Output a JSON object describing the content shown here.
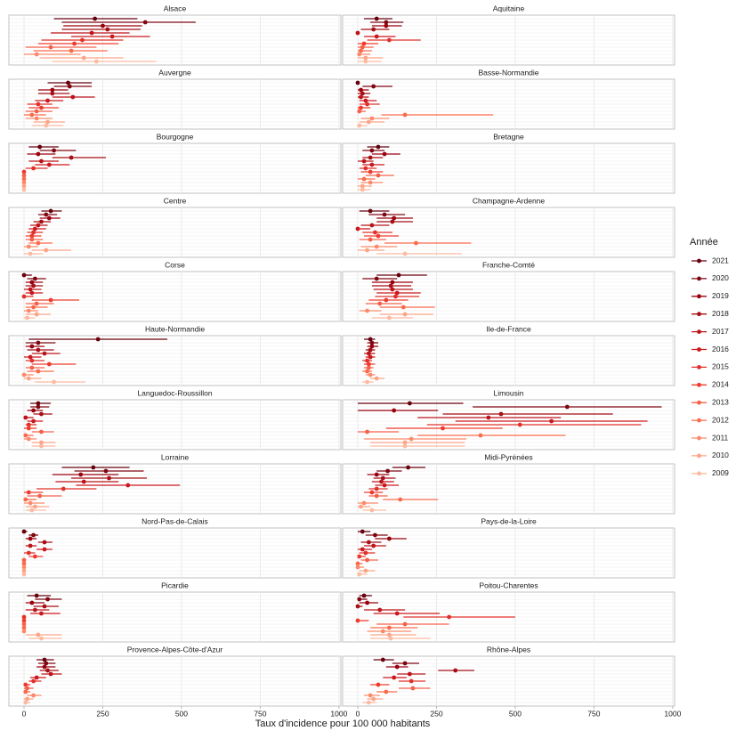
{
  "chart_data": {
    "type": "interval",
    "x_label": "Taux d'incidence pour 100 000 habitants",
    "legend_title": "Année",
    "xlim": [
      -48,
      1006
    ],
    "xticks": [
      0,
      250,
      500,
      750,
      1000
    ],
    "grid": true,
    "series": [
      {
        "name": "2021",
        "color": "#67000d"
      },
      {
        "name": "2020",
        "color": "#7f0610"
      },
      {
        "name": "2019",
        "color": "#99000d"
      },
      {
        "name": "2018",
        "color": "#a50f15"
      },
      {
        "name": "2017",
        "color": "#bb1419"
      },
      {
        "name": "2016",
        "color": "#cb181d"
      },
      {
        "name": "2015",
        "color": "#e0312a"
      },
      {
        "name": "2014",
        "color": "#ef3b2c"
      },
      {
        "name": "2013",
        "color": "#f4614a"
      },
      {
        "name": "2012",
        "color": "#fb6a4a"
      },
      {
        "name": "2011",
        "color": "#fc8a6a"
      },
      {
        "name": "2010",
        "color": "#fca486"
      },
      {
        "name": "2009",
        "color": "#fcbba1"
      }
    ],
    "facets": [
      {
        "title": "Alsace",
        "values": [
          225,
          385,
          250,
          265,
          215,
          280,
          185,
          160,
          85,
          150,
          40,
          190,
          230
        ],
        "lower": [
          95,
          120,
          125,
          120,
          85,
          150,
          55,
          45,
          5,
          30,
          0,
          50,
          90
        ],
        "upper": [
          360,
          545,
          375,
          370,
          335,
          400,
          315,
          300,
          230,
          265,
          180,
          315,
          420
        ]
      },
      {
        "title": "Aquitaine",
        "values": [
          60,
          90,
          90,
          50,
          0,
          60,
          100,
          20,
          15,
          10,
          5,
          25,
          25
        ],
        "lower": [
          20,
          40,
          45,
          10,
          0,
          20,
          30,
          0,
          0,
          0,
          0,
          0,
          0
        ],
        "upper": [
          110,
          145,
          140,
          100,
          5,
          120,
          200,
          65,
          50,
          45,
          40,
          80,
          75
        ]
      },
      {
        "title": "Auvergne",
        "values": [
          140,
          145,
          90,
          90,
          155,
          75,
          45,
          55,
          40,
          25,
          40,
          75,
          70
        ],
        "lower": [
          75,
          95,
          45,
          45,
          90,
          35,
          10,
          15,
          5,
          0,
          5,
          30,
          25
        ],
        "upper": [
          215,
          215,
          140,
          145,
          225,
          125,
          90,
          110,
          90,
          70,
          90,
          130,
          125
        ]
      },
      {
        "title": "Basse-Normandie",
        "values": [
          0,
          50,
          10,
          15,
          10,
          25,
          30,
          10,
          5,
          150,
          45,
          35,
          5
        ],
        "lower": [
          0,
          15,
          0,
          0,
          0,
          5,
          5,
          0,
          0,
          75,
          10,
          5,
          0
        ],
        "upper": [
          5,
          110,
          35,
          40,
          35,
          60,
          70,
          40,
          25,
          430,
          100,
          85,
          30
        ]
      },
      {
        "title": "Bourgogne",
        "values": [
          50,
          95,
          45,
          150,
          55,
          80,
          30,
          0,
          0,
          0,
          0,
          0,
          0
        ],
        "lower": [
          15,
          50,
          10,
          90,
          15,
          35,
          5,
          0,
          0,
          0,
          0,
          0,
          0
        ],
        "upper": [
          110,
          165,
          100,
          260,
          110,
          145,
          75,
          0,
          0,
          0,
          0,
          0,
          0
        ]
      },
      {
        "title": "Bretagne",
        "values": [
          65,
          45,
          85,
          40,
          20,
          45,
          25,
          40,
          65,
          20,
          40,
          15,
          15
        ],
        "lower": [
          30,
          15,
          45,
          15,
          0,
          15,
          5,
          10,
          25,
          0,
          10,
          0,
          0
        ],
        "upper": [
          100,
          85,
          135,
          80,
          50,
          85,
          60,
          80,
          115,
          55,
          80,
          45,
          40
        ]
      },
      {
        "title": "Centre",
        "values": [
          85,
          70,
          80,
          55,
          45,
          35,
          30,
          25,
          25,
          45,
          15,
          70,
          20
        ],
        "lower": [
          55,
          45,
          50,
          30,
          20,
          15,
          10,
          5,
          5,
          15,
          0,
          25,
          0
        ],
        "upper": [
          120,
          105,
          115,
          85,
          75,
          70,
          60,
          55,
          60,
          90,
          45,
          150,
          60
        ]
      },
      {
        "title": "Champagne-Ardenne",
        "values": [
          40,
          85,
          115,
          110,
          45,
          0,
          55,
          65,
          40,
          185,
          60,
          30,
          150
        ],
        "lower": [
          5,
          35,
          60,
          60,
          10,
          0,
          15,
          20,
          5,
          85,
          10,
          0,
          60
        ],
        "upper": [
          100,
          150,
          175,
          175,
          100,
          40,
          110,
          130,
          90,
          360,
          125,
          85,
          330
        ]
      },
      {
        "title": "Corse",
        "values": [
          0,
          35,
          25,
          30,
          20,
          25,
          0,
          85,
          40,
          30,
          15,
          40,
          10
        ],
        "lower": [
          0,
          10,
          5,
          5,
          0,
          5,
          0,
          25,
          5,
          5,
          0,
          5,
          0
        ],
        "upper": [
          25,
          70,
          60,
          60,
          55,
          60,
          30,
          175,
          95,
          75,
          45,
          85,
          35
        ]
      },
      {
        "title": "Franche-Comté",
        "values": [
          130,
          60,
          110,
          105,
          110,
          125,
          120,
          90,
          70,
          145,
          30,
          150,
          100
        ],
        "lower": [
          60,
          15,
          45,
          45,
          50,
          60,
          55,
          35,
          25,
          70,
          5,
          70,
          45
        ],
        "upper": [
          220,
          125,
          175,
          170,
          175,
          200,
          195,
          160,
          140,
          245,
          75,
          240,
          175
        ]
      },
      {
        "title": "Haute-Normandie",
        "values": [
          235,
          45,
          25,
          45,
          65,
          20,
          25,
          80,
          25,
          45,
          0,
          15,
          95
        ],
        "lower": [
          15,
          5,
          5,
          10,
          25,
          0,
          5,
          25,
          5,
          10,
          0,
          0,
          35
        ],
        "upper": [
          455,
          100,
          65,
          95,
          115,
          55,
          65,
          165,
          65,
          95,
          30,
          55,
          195
        ]
      },
      {
        "title": "Ile-de-France",
        "values": [
          40,
          45,
          45,
          40,
          35,
          40,
          30,
          35,
          35,
          30,
          40,
          60,
          30
        ],
        "lower": [
          20,
          30,
          30,
          25,
          20,
          25,
          15,
          20,
          20,
          15,
          25,
          40,
          15
        ],
        "upper": [
          55,
          65,
          65,
          55,
          55,
          55,
          45,
          55,
          50,
          45,
          55,
          85,
          50
        ]
      },
      {
        "title": "Languedoc-Roussillon",
        "values": [
          45,
          45,
          30,
          55,
          5,
          30,
          15,
          15,
          55,
          5,
          15,
          55,
          55
        ],
        "lower": [
          20,
          20,
          10,
          30,
          0,
          10,
          5,
          0,
          25,
          0,
          0,
          25,
          25
        ],
        "upper": [
          85,
          80,
          60,
          90,
          30,
          60,
          40,
          40,
          95,
          30,
          40,
          100,
          100
        ]
      },
      {
        "title": "Limousin",
        "values": [
          165,
          665,
          115,
          455,
          415,
          615,
          515,
          270,
          30,
          390,
          170,
          150,
          150
        ],
        "lower": [
          0,
          365,
          0,
          270,
          190,
          310,
          220,
          90,
          0,
          190,
          20,
          40,
          40
        ],
        "upper": [
          335,
          965,
          255,
          810,
          645,
          920,
          900,
          460,
          130,
          660,
          345,
          340,
          340
        ]
      },
      {
        "title": "Lorraine",
        "values": [
          220,
          260,
          180,
          270,
          190,
          330,
          125,
          15,
          50,
          5,
          20,
          35,
          25
        ],
        "lower": [
          120,
          160,
          90,
          150,
          100,
          165,
          40,
          0,
          10,
          0,
          0,
          5,
          5
        ],
        "upper": [
          335,
          380,
          300,
          390,
          300,
          495,
          230,
          60,
          120,
          40,
          65,
          80,
          70
        ]
      },
      {
        "title": "Midi-Pyrénées",
        "values": [
          160,
          95,
          60,
          80,
          75,
          85,
          60,
          45,
          60,
          135,
          20,
          10,
          45
        ],
        "lower": [
          110,
          60,
          30,
          50,
          45,
          55,
          35,
          20,
          35,
          80,
          0,
          0,
          15
        ],
        "upper": [
          215,
          140,
          100,
          120,
          115,
          130,
          95,
          80,
          95,
          255,
          65,
          40,
          90
        ]
      },
      {
        "title": "Nord-Pas-de-Calais",
        "values": [
          0,
          30,
          20,
          65,
          20,
          65,
          15,
          35,
          0,
          0,
          0,
          0,
          0
        ],
        "lower": [
          0,
          15,
          5,
          45,
          5,
          40,
          0,
          15,
          0,
          0,
          0,
          0,
          0
        ],
        "upper": [
          10,
          45,
          40,
          90,
          40,
          90,
          35,
          60,
          0,
          0,
          0,
          0,
          0
        ]
      },
      {
        "title": "Pays-de-la-Loire",
        "values": [
          15,
          55,
          100,
          35,
          50,
          15,
          25,
          5,
          30,
          0,
          0,
          25,
          5
        ],
        "lower": [
          0,
          25,
          55,
          10,
          20,
          0,
          5,
          0,
          10,
          0,
          0,
          5,
          0
        ],
        "upper": [
          40,
          95,
          155,
          75,
          90,
          45,
          55,
          25,
          65,
          15,
          20,
          55,
          30
        ]
      },
      {
        "title": "Picardie",
        "values": [
          40,
          75,
          25,
          65,
          35,
          55,
          0,
          0,
          0,
          0,
          0,
          45,
          55
        ],
        "lower": [
          10,
          35,
          5,
          30,
          5,
          20,
          0,
          0,
          0,
          0,
          0,
          5,
          15
        ],
        "upper": [
          85,
          120,
          65,
          110,
          80,
          115,
          0,
          0,
          0,
          0,
          0,
          120,
          120
        ]
      },
      {
        "title": "Poitou-Charentes",
        "values": [
          20,
          5,
          30,
          0,
          70,
          125,
          290,
          0,
          150,
          100,
          80,
          100,
          105
        ],
        "lower": [
          5,
          0,
          5,
          0,
          20,
          50,
          145,
          0,
          60,
          40,
          30,
          40,
          40
        ],
        "upper": [
          45,
          30,
          65,
          15,
          150,
          260,
          500,
          35,
          290,
          190,
          170,
          185,
          230
        ]
      },
      {
        "title": "Provence-Alpes-Côte-d'Azur",
        "values": [
          65,
          70,
          65,
          75,
          85,
          40,
          30,
          5,
          10,
          5,
          30,
          10,
          5
        ],
        "lower": [
          40,
          45,
          40,
          50,
          55,
          20,
          15,
          0,
          0,
          0,
          10,
          0,
          0
        ],
        "upper": [
          95,
          100,
          100,
          110,
          120,
          70,
          55,
          20,
          30,
          20,
          55,
          30,
          20
        ]
      },
      {
        "title": "Rhône-Alpes",
        "values": [
          80,
          150,
          125,
          310,
          165,
          115,
          170,
          65,
          175,
          90,
          40,
          50,
          35
        ],
        "lower": [
          50,
          110,
          90,
          255,
          125,
          80,
          130,
          40,
          130,
          60,
          20,
          30,
          15
        ],
        "upper": [
          115,
          195,
          160,
          370,
          215,
          155,
          215,
          100,
          230,
          125,
          70,
          80,
          60
        ]
      }
    ]
  }
}
